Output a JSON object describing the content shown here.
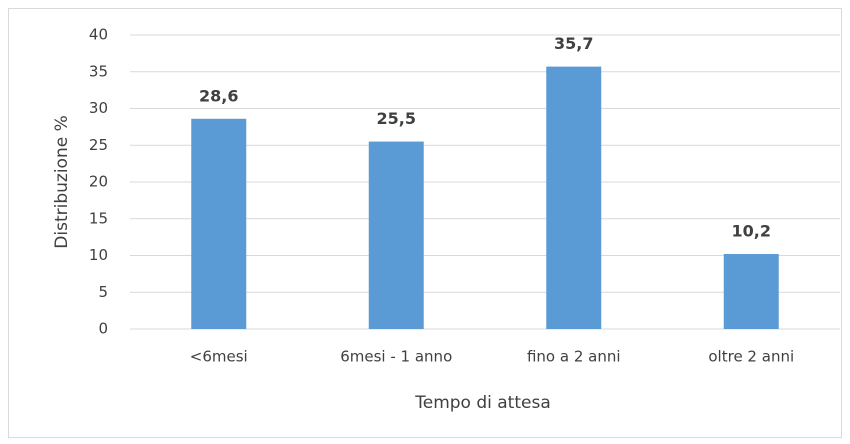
{
  "chart_data": {
    "type": "bar",
    "x_label": "Tempo di attesa",
    "y_label": "Distribuzione %",
    "categories": [
      "<6mesi",
      "6mesi - 1 anno",
      "fino a 2 anni",
      "oltre 2 anni"
    ],
    "values": [
      28.6,
      25.5,
      35.7,
      10.2
    ],
    "value_labels": [
      "28,6",
      "25,5",
      "35,7",
      "10,2"
    ],
    "color": "#5b9bd5",
    "ylim": [
      0,
      40
    ],
    "yticks": [
      0,
      5,
      10,
      15,
      20,
      25,
      30,
      35,
      40
    ],
    "grid": true
  }
}
